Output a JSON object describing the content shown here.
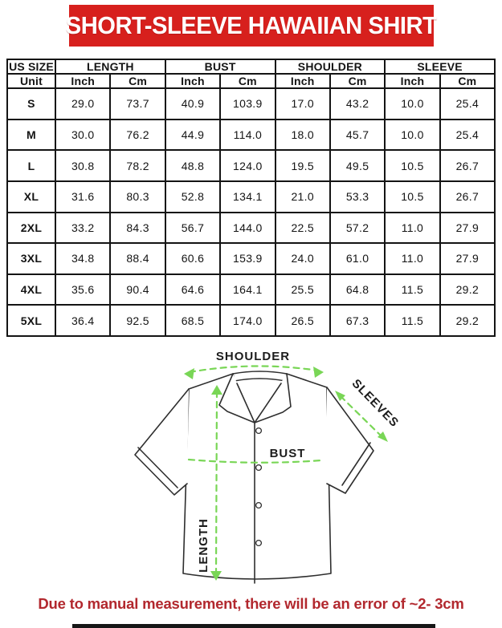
{
  "banner": {
    "title": "SHORT-SLEEVE HAWAIIAN SHIRT",
    "bg_color": "#d7201d"
  },
  "table": {
    "size_header": "US SIZE",
    "unit_label": "Unit",
    "groups": [
      {
        "label": "LENGTH"
      },
      {
        "label": "BUST"
      },
      {
        "label": "SHOULDER"
      },
      {
        "label": "SLEEVE"
      }
    ],
    "unit_headers": [
      "Inch",
      "Cm",
      "Inch",
      "Cm",
      "Inch",
      "Cm",
      "Inch",
      "Cm"
    ],
    "rows": [
      {
        "size": "S",
        "values": [
          "29.0",
          "73.7",
          "40.9",
          "103.9",
          "17.0",
          "43.2",
          "10.0",
          "25.4"
        ]
      },
      {
        "size": "M",
        "values": [
          "30.0",
          "76.2",
          "44.9",
          "114.0",
          "18.0",
          "45.7",
          "10.0",
          "25.4"
        ]
      },
      {
        "size": "L",
        "values": [
          "30.8",
          "78.2",
          "48.8",
          "124.0",
          "19.5",
          "49.5",
          "10.5",
          "26.7"
        ]
      },
      {
        "size": "XL",
        "values": [
          "31.6",
          "80.3",
          "52.8",
          "134.1",
          "21.0",
          "53.3",
          "10.5",
          "26.7"
        ]
      },
      {
        "size": "2XL",
        "values": [
          "33.2",
          "84.3",
          "56.7",
          "144.0",
          "22.5",
          "57.2",
          "11.0",
          "27.9"
        ]
      },
      {
        "size": "3XL",
        "values": [
          "34.8",
          "88.4",
          "60.6",
          "153.9",
          "24.0",
          "61.0",
          "11.0",
          "27.9"
        ]
      },
      {
        "size": "4XL",
        "values": [
          "35.6",
          "90.4",
          "64.6",
          "164.1",
          "25.5",
          "64.8",
          "11.5",
          "29.2"
        ]
      },
      {
        "size": "5XL",
        "values": [
          "36.4",
          "92.5",
          "68.5",
          "174.0",
          "26.5",
          "67.3",
          "11.5",
          "29.2"
        ]
      }
    ]
  },
  "diagram": {
    "labels": {
      "shoulder": "SHOULDER",
      "sleeves": "SLEEVES",
      "bust": "BUST",
      "length": "LENGTH"
    },
    "arrow_color": "#79d656",
    "outline_color": "#2e2e2e"
  },
  "footer": {
    "note": "Due to manual measurement, there will be an error of ~2- 3cm",
    "color": "#b2282e"
  }
}
